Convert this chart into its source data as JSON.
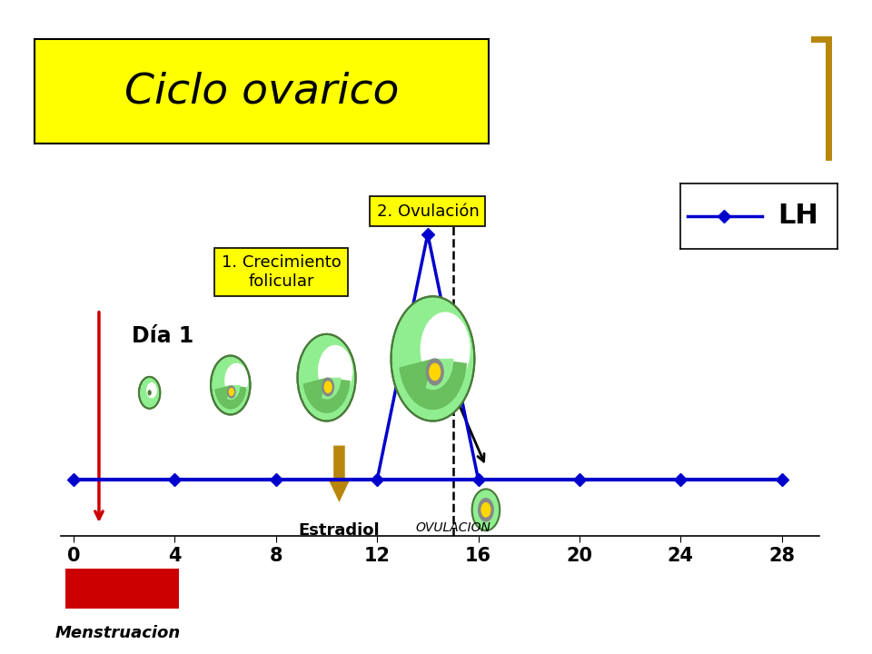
{
  "title": "Ciclo ovarico",
  "title_box_color": "#FFFF00",
  "background_color": "#FFFFFF",
  "x_ticks": [
    0,
    4,
    8,
    12,
    16,
    20,
    24,
    28
  ],
  "lh_color": "#0000CC",
  "label_dia1": "Día 1",
  "label_menstruacion": "Menstruacion",
  "label_estradiol": "Estradiol",
  "label_ovulacion": "OVULACION",
  "label_crecimiento": "1. Crecimiento\nfolicular",
  "label_ovulacion2": "2. Ovulación",
  "label_lh": "LH",
  "green_light": "#90EE90",
  "green_mid": "#6abf5e",
  "green_dark": "#4a7a3a",
  "gold_color": "#B8860B",
  "red_color": "#CC0000",
  "gray_egg": "#888888",
  "yellow_egg": "#FFD700"
}
